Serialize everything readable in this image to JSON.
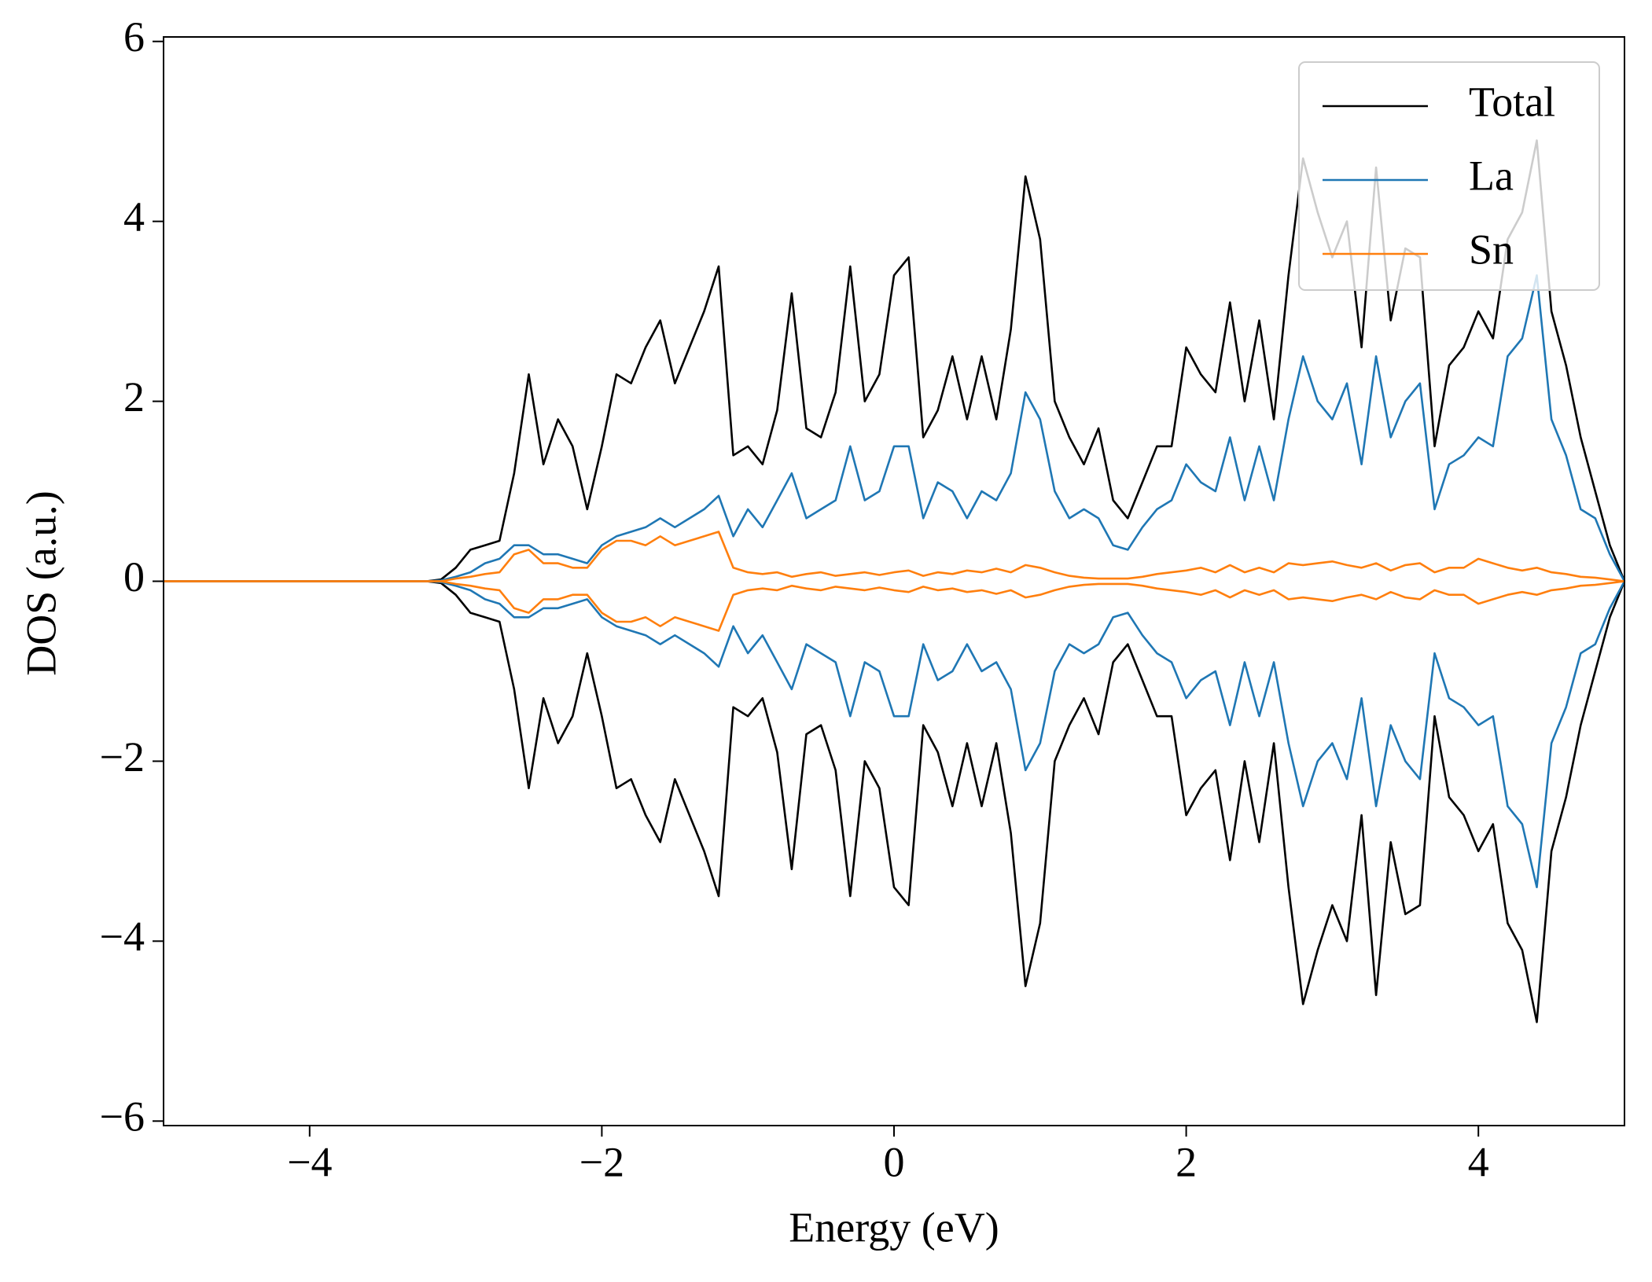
{
  "chart_data": {
    "type": "line",
    "xlabel": "Energy (eV)",
    "ylabel": "DOS (a.u.)",
    "xlim": [
      -5,
      5
    ],
    "ylim": [
      -6.05,
      6.05
    ],
    "xticks": [
      {
        "value": -4,
        "label": "−4"
      },
      {
        "value": -2,
        "label": "−2"
      },
      0,
      2,
      4
    ],
    "yticks": [
      {
        "value": -6,
        "label": "−6"
      },
      {
        "value": -4,
        "label": "−4"
      },
      {
        "value": -2,
        "label": "−2"
      },
      0,
      2,
      4,
      6
    ],
    "grid": false,
    "legend": "upper right",
    "x": [
      -5,
      -4.9,
      -4.8,
      -4.7,
      -4.6,
      -4.5,
      -4.4,
      -4.3,
      -4.2,
      -4.1,
      -4,
      -3.9,
      -3.8,
      -3.7,
      -3.6,
      -3.5,
      -3.4,
      -3.3,
      -3.2,
      -3.1,
      -3,
      -2.9,
      -2.8,
      -2.7,
      -2.6,
      -2.5,
      -2.4,
      -2.3,
      -2.2,
      -2.1,
      -2,
      -1.9,
      -1.8,
      -1.7,
      -1.6,
      -1.5,
      -1.4,
      -1.3,
      -1.2,
      -1.1,
      -1,
      -0.9,
      -0.8,
      -0.7,
      -0.6,
      -0.5,
      -0.4,
      -0.3,
      -0.2,
      -0.1,
      0,
      0.1,
      0.2,
      0.3,
      0.4,
      0.5,
      0.6,
      0.7,
      0.8,
      0.9,
      1,
      1.1,
      1.2,
      1.3,
      1.4,
      1.5,
      1.6,
      1.7,
      1.8,
      1.9,
      2,
      2.1,
      2.2,
      2.3,
      2.4,
      2.5,
      2.6,
      2.7,
      2.8,
      2.9,
      3,
      3.1,
      3.2,
      3.3,
      3.4,
      3.5,
      3.6,
      3.7,
      3.8,
      3.9,
      4,
      4.1,
      4.2,
      4.3,
      4.4,
      4.5,
      4.6,
      4.7,
      4.8,
      4.9,
      5
    ],
    "series": [
      {
        "name": "Total",
        "color": "#000000",
        "values": [
          0,
          0,
          0,
          0,
          0,
          0,
          0,
          0,
          0,
          0,
          0,
          0,
          0,
          0,
          0,
          0,
          0,
          0,
          0,
          0.02,
          0.15,
          0.35,
          0.4,
          0.45,
          1.2,
          2.3,
          1.3,
          1.8,
          1.5,
          0.8,
          1.5,
          2.3,
          2.2,
          2.6,
          2.9,
          2.2,
          2.6,
          3.0,
          3.5,
          1.4,
          1.5,
          1.3,
          1.9,
          3.2,
          1.7,
          1.6,
          2.1,
          3.5,
          2.0,
          2.3,
          3.4,
          3.6,
          1.6,
          1.9,
          2.5,
          1.8,
          2.5,
          1.8,
          2.8,
          4.5,
          3.8,
          2.0,
          1.6,
          1.3,
          1.7,
          0.9,
          0.7,
          1.1,
          1.5,
          1.5,
          2.6,
          2.3,
          2.1,
          3.1,
          2.0,
          2.9,
          1.8,
          3.4,
          4.7,
          4.1,
          3.6,
          4.0,
          2.6,
          4.6,
          2.9,
          3.7,
          3.6,
          1.5,
          2.4,
          2.6,
          3.0,
          2.7,
          3.8,
          4.1,
          4.9,
          3.0,
          2.4,
          1.6,
          1.0,
          0.4,
          0
        ],
        "values_down": [
          0,
          0,
          0,
          0,
          0,
          0,
          0,
          0,
          0,
          0,
          0,
          0,
          0,
          0,
          0,
          0,
          0,
          0,
          0,
          -0.02,
          -0.15,
          -0.35,
          -0.4,
          -0.45,
          -1.2,
          -2.3,
          -1.3,
          -1.8,
          -1.5,
          -0.8,
          -1.5,
          -2.3,
          -2.2,
          -2.6,
          -2.9,
          -2.2,
          -2.6,
          -3.0,
          -3.5,
          -1.4,
          -1.5,
          -1.3,
          -1.9,
          -3.2,
          -1.7,
          -1.6,
          -2.1,
          -3.5,
          -2.0,
          -2.3,
          -3.4,
          -3.6,
          -1.6,
          -1.9,
          -2.5,
          -1.8,
          -2.5,
          -1.8,
          -2.8,
          -4.5,
          -3.8,
          -2.0,
          -1.6,
          -1.3,
          -1.7,
          -0.9,
          -0.7,
          -1.1,
          -1.5,
          -1.5,
          -2.6,
          -2.3,
          -2.1,
          -3.1,
          -2.0,
          -2.9,
          -1.8,
          -3.4,
          -4.7,
          -4.1,
          -3.6,
          -4.0,
          -2.6,
          -4.6,
          -2.9,
          -3.7,
          -3.6,
          -1.5,
          -2.4,
          -2.6,
          -3.0,
          -2.7,
          -3.8,
          -4.1,
          -4.9,
          -3.0,
          -2.4,
          -1.6,
          -1.0,
          -0.4,
          0
        ]
      },
      {
        "name": "La",
        "color": "#1f77b4",
        "values": [
          0,
          0,
          0,
          0,
          0,
          0,
          0,
          0,
          0,
          0,
          0,
          0,
          0,
          0,
          0,
          0,
          0,
          0,
          0,
          0.01,
          0.05,
          0.1,
          0.2,
          0.25,
          0.4,
          0.4,
          0.3,
          0.3,
          0.25,
          0.2,
          0.4,
          0.5,
          0.55,
          0.6,
          0.7,
          0.6,
          0.7,
          0.8,
          0.95,
          0.5,
          0.8,
          0.6,
          0.9,
          1.2,
          0.7,
          0.8,
          0.9,
          1.5,
          0.9,
          1.0,
          1.5,
          1.5,
          0.7,
          1.1,
          1.0,
          0.7,
          1.0,
          0.9,
          1.2,
          2.1,
          1.8,
          1.0,
          0.7,
          0.8,
          0.7,
          0.4,
          0.35,
          0.6,
          0.8,
          0.9,
          1.3,
          1.1,
          1.0,
          1.6,
          0.9,
          1.5,
          0.9,
          1.8,
          2.5,
          2.0,
          1.8,
          2.2,
          1.3,
          2.5,
          1.6,
          2.0,
          2.2,
          0.8,
          1.3,
          1.4,
          1.6,
          1.5,
          2.5,
          2.7,
          3.4,
          1.8,
          1.4,
          0.8,
          0.7,
          0.3,
          0
        ],
        "values_down": [
          0,
          0,
          0,
          0,
          0,
          0,
          0,
          0,
          0,
          0,
          0,
          0,
          0,
          0,
          0,
          0,
          0,
          0,
          0,
          -0.01,
          -0.05,
          -0.1,
          -0.2,
          -0.25,
          -0.4,
          -0.4,
          -0.3,
          -0.3,
          -0.25,
          -0.2,
          -0.4,
          -0.5,
          -0.55,
          -0.6,
          -0.7,
          -0.6,
          -0.7,
          -0.8,
          -0.95,
          -0.5,
          -0.8,
          -0.6,
          -0.9,
          -1.2,
          -0.7,
          -0.8,
          -0.9,
          -1.5,
          -0.9,
          -1.0,
          -1.5,
          -1.5,
          -0.7,
          -1.1,
          -1.0,
          -0.7,
          -1.0,
          -0.9,
          -1.2,
          -2.1,
          -1.8,
          -1.0,
          -0.7,
          -0.8,
          -0.7,
          -0.4,
          -0.35,
          -0.6,
          -0.8,
          -0.9,
          -1.3,
          -1.1,
          -1.0,
          -1.6,
          -0.9,
          -1.5,
          -0.9,
          -1.8,
          -2.5,
          -2.0,
          -1.8,
          -2.2,
          -1.3,
          -2.5,
          -1.6,
          -2.0,
          -2.2,
          -0.8,
          -1.3,
          -1.4,
          -1.6,
          -1.5,
          -2.5,
          -2.7,
          -3.4,
          -1.8,
          -1.4,
          -0.8,
          -0.7,
          -0.3,
          0
        ]
      },
      {
        "name": "Sn",
        "color": "#ff7f0e",
        "values": [
          0,
          0,
          0,
          0,
          0,
          0,
          0,
          0,
          0,
          0,
          0,
          0,
          0,
          0,
          0,
          0,
          0,
          0,
          0,
          0,
          0.03,
          0.05,
          0.08,
          0.1,
          0.3,
          0.35,
          0.2,
          0.2,
          0.15,
          0.15,
          0.35,
          0.45,
          0.45,
          0.4,
          0.5,
          0.4,
          0.45,
          0.5,
          0.55,
          0.15,
          0.1,
          0.08,
          0.1,
          0.05,
          0.08,
          0.1,
          0.06,
          0.08,
          0.1,
          0.07,
          0.1,
          0.12,
          0.06,
          0.1,
          0.08,
          0.12,
          0.1,
          0.14,
          0.1,
          0.18,
          0.15,
          0.1,
          0.06,
          0.04,
          0.03,
          0.03,
          0.03,
          0.05,
          0.08,
          0.1,
          0.12,
          0.15,
          0.1,
          0.18,
          0.1,
          0.15,
          0.1,
          0.2,
          0.18,
          0.2,
          0.22,
          0.18,
          0.15,
          0.2,
          0.12,
          0.18,
          0.2,
          0.1,
          0.15,
          0.15,
          0.25,
          0.2,
          0.15,
          0.12,
          0.15,
          0.1,
          0.08,
          0.05,
          0.04,
          0.02,
          0
        ],
        "values_down": [
          0,
          0,
          0,
          0,
          0,
          0,
          0,
          0,
          0,
          0,
          0,
          0,
          0,
          0,
          0,
          0,
          0,
          0,
          0,
          0,
          -0.03,
          -0.05,
          -0.08,
          -0.1,
          -0.3,
          -0.35,
          -0.2,
          -0.2,
          -0.15,
          -0.15,
          -0.35,
          -0.45,
          -0.45,
          -0.4,
          -0.5,
          -0.4,
          -0.45,
          -0.5,
          -0.55,
          -0.15,
          -0.1,
          -0.08,
          -0.1,
          -0.05,
          -0.08,
          -0.1,
          -0.06,
          -0.08,
          -0.1,
          -0.07,
          -0.1,
          -0.12,
          -0.06,
          -0.1,
          -0.08,
          -0.12,
          -0.1,
          -0.14,
          -0.1,
          -0.18,
          -0.15,
          -0.1,
          -0.06,
          -0.04,
          -0.03,
          -0.03,
          -0.03,
          -0.05,
          -0.08,
          -0.1,
          -0.12,
          -0.15,
          -0.1,
          -0.18,
          -0.1,
          -0.15,
          -0.1,
          -0.2,
          -0.18,
          -0.2,
          -0.22,
          -0.18,
          -0.15,
          -0.2,
          -0.12,
          -0.18,
          -0.2,
          -0.1,
          -0.15,
          -0.15,
          -0.25,
          -0.2,
          -0.15,
          -0.12,
          -0.15,
          -0.1,
          -0.08,
          -0.05,
          -0.04,
          -0.02,
          0
        ]
      }
    ]
  }
}
